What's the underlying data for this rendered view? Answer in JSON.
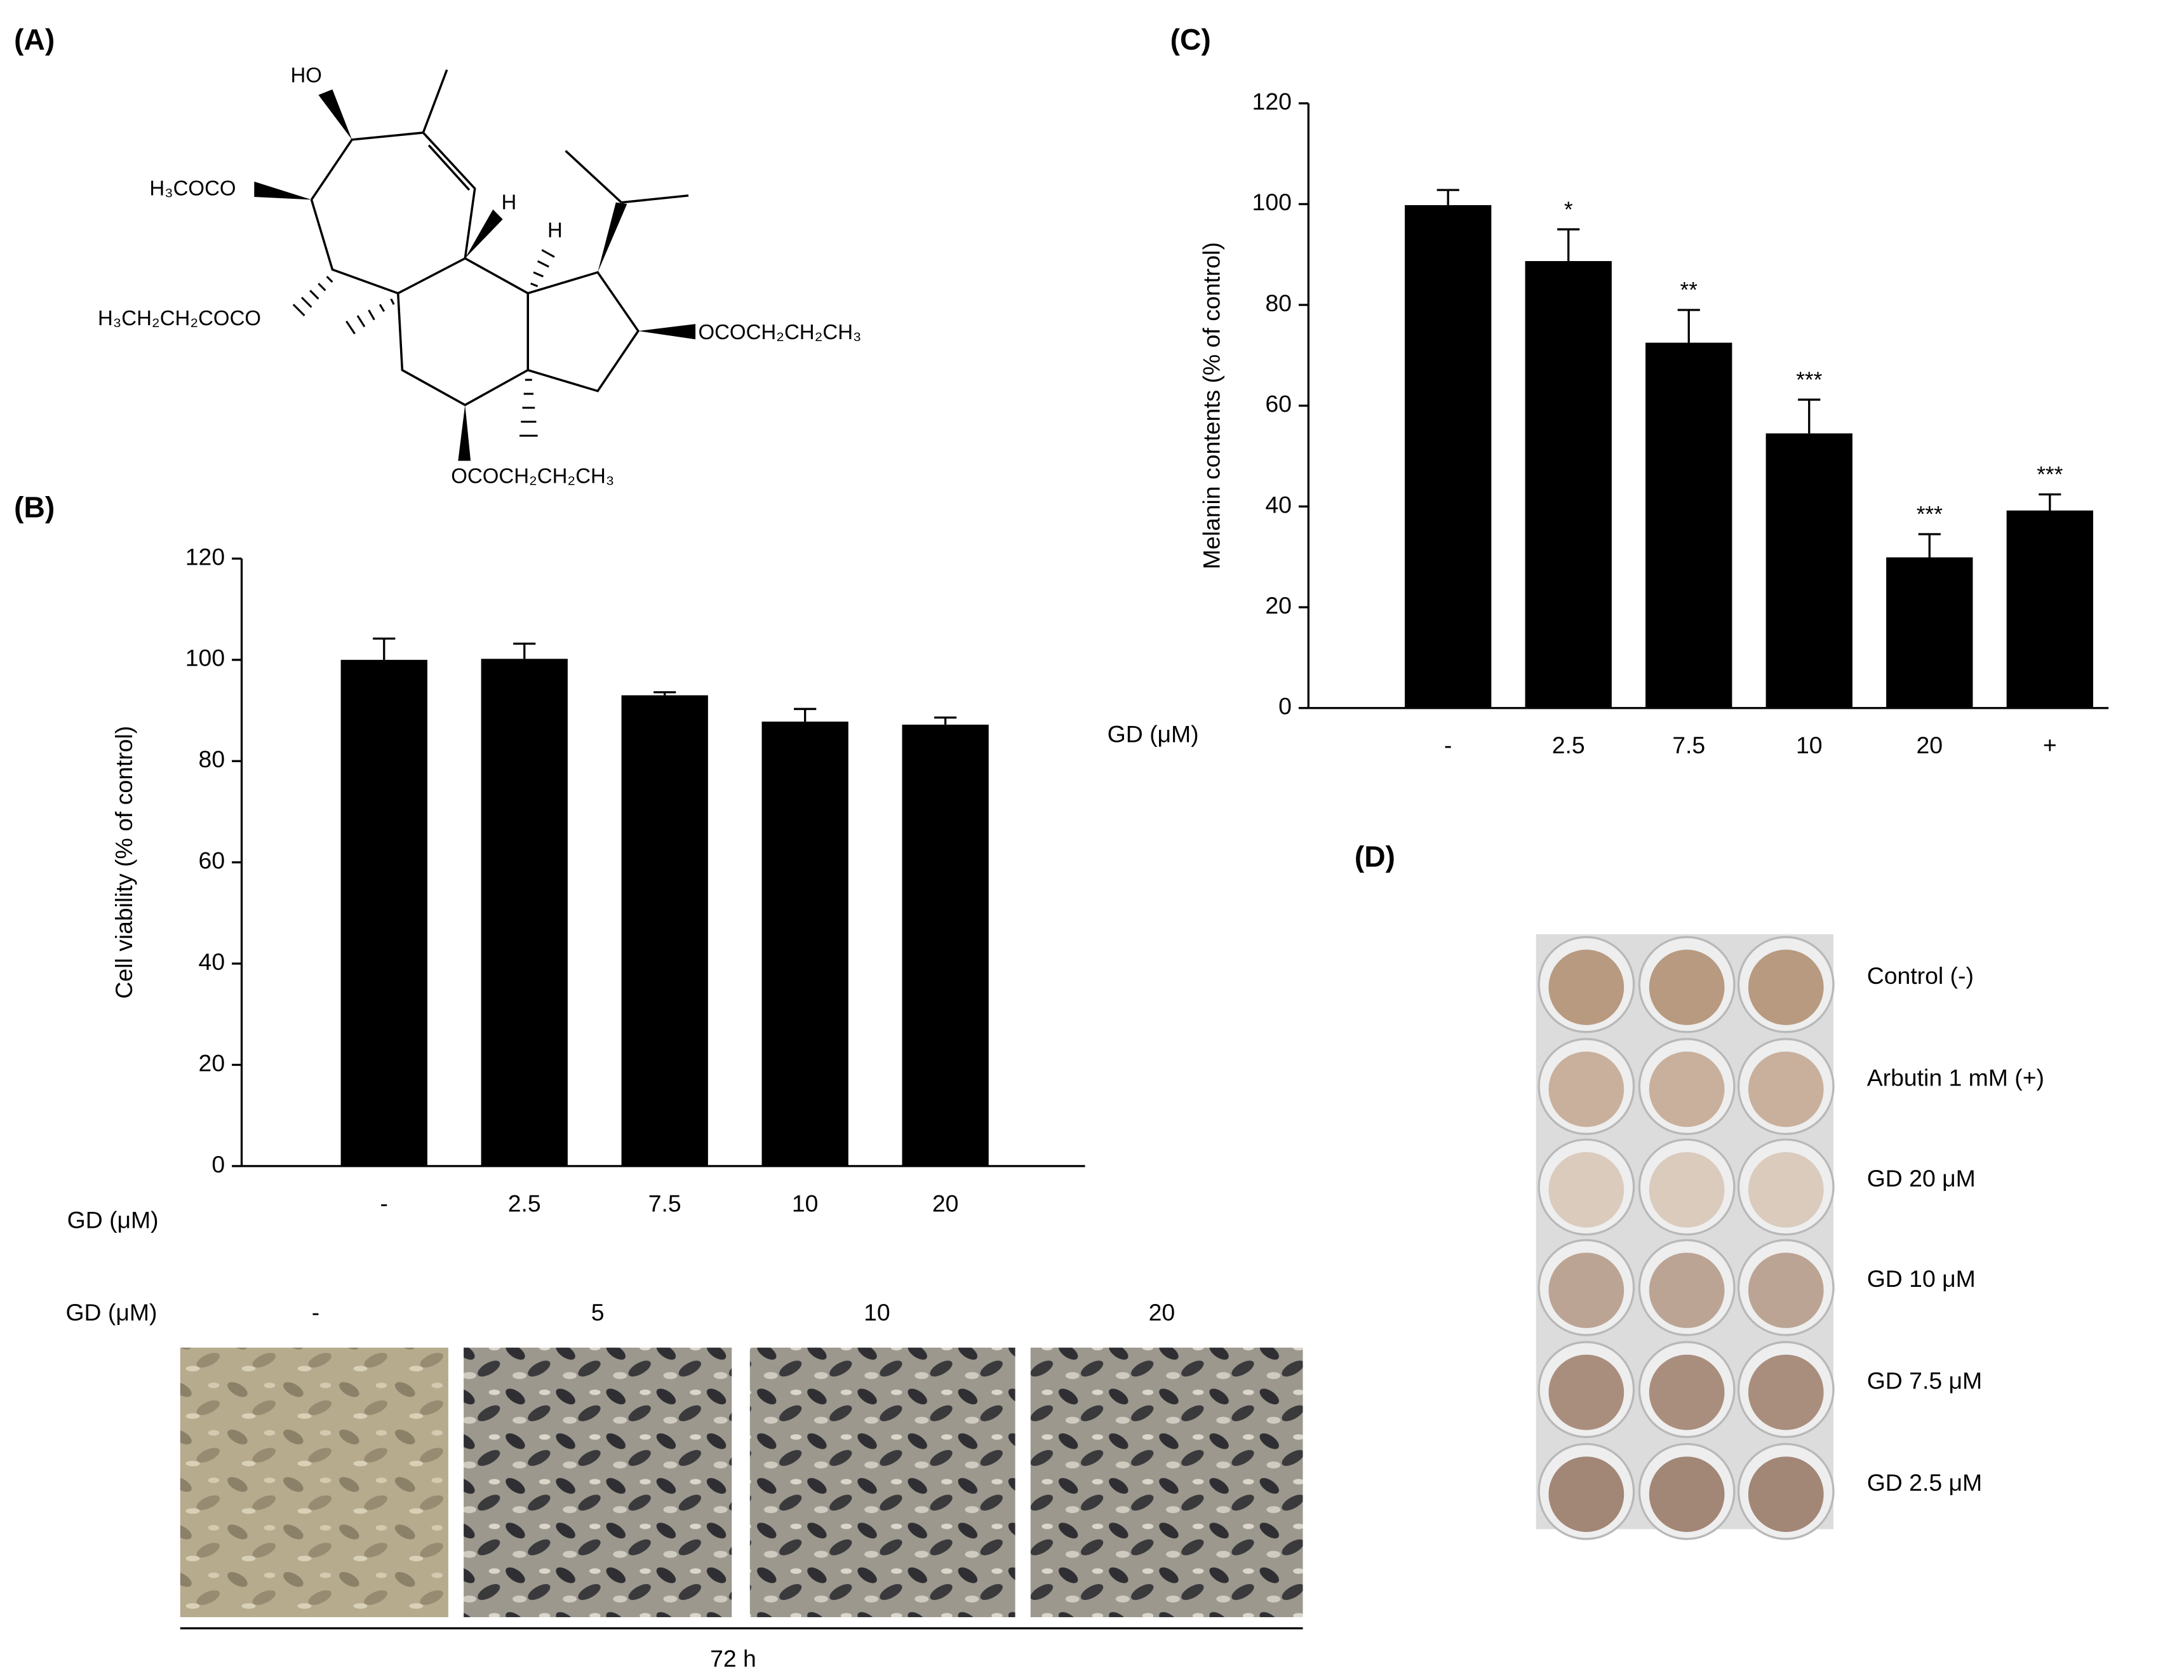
{
  "panel_labels": [
    "(A)",
    "(B)",
    "(C)",
    "(D)"
  ],
  "structure_labels": [
    "HO",
    "H₃COCO",
    "H₃CH₂CH₂COCO",
    "H",
    "H",
    "OCOCH₂CH₂CH₃",
    "OCOCH₂CH₂CH₃"
  ],
  "chart_data": [
    {
      "type": "bar",
      "y_label": "Cell viability (% of control)",
      "x_label": "GD (μM)",
      "categories": [
        "-",
        "2.5",
        "7.5",
        "10",
        "20"
      ],
      "values": [
        100,
        100.2,
        93,
        87.8,
        87.2
      ],
      "errors": [
        4.2,
        3,
        0.6,
        2.5,
        1.4
      ],
      "color": "#000000",
      "ylim": [
        0,
        120
      ],
      "yticks": [
        0,
        20,
        40,
        60,
        80,
        100,
        120
      ]
    },
    {
      "type": "bar",
      "y_label": "Melanin contents (% of control)",
      "x_label": "GD (μM)",
      "categories": [
        "-",
        "2.5",
        "7.5",
        "10",
        "20",
        "+"
      ],
      "values": [
        99.8,
        88.7,
        72.5,
        54.5,
        29.9,
        39.2
      ],
      "errors": [
        3,
        6.3,
        6.5,
        6.7,
        4.6,
        3.2
      ],
      "annotations": [
        null,
        "*",
        "**",
        "***",
        "***",
        "***"
      ],
      "color": "#000000",
      "ylim": [
        0,
        120
      ],
      "yticks": [
        0,
        20,
        40,
        60,
        80,
        100,
        120
      ]
    }
  ],
  "micrographs": {
    "label": "GD (μM)",
    "conditions": [
      "-",
      "5",
      "10",
      "20"
    ],
    "time": "72 h"
  },
  "plate": {
    "rows": [
      "Control  (-)",
      "Arbutin 1 mM (+)",
      "GD 20 μM",
      "GD 10 μM",
      "GD 7.5 μM",
      "GD 2.5 μM"
    ]
  }
}
